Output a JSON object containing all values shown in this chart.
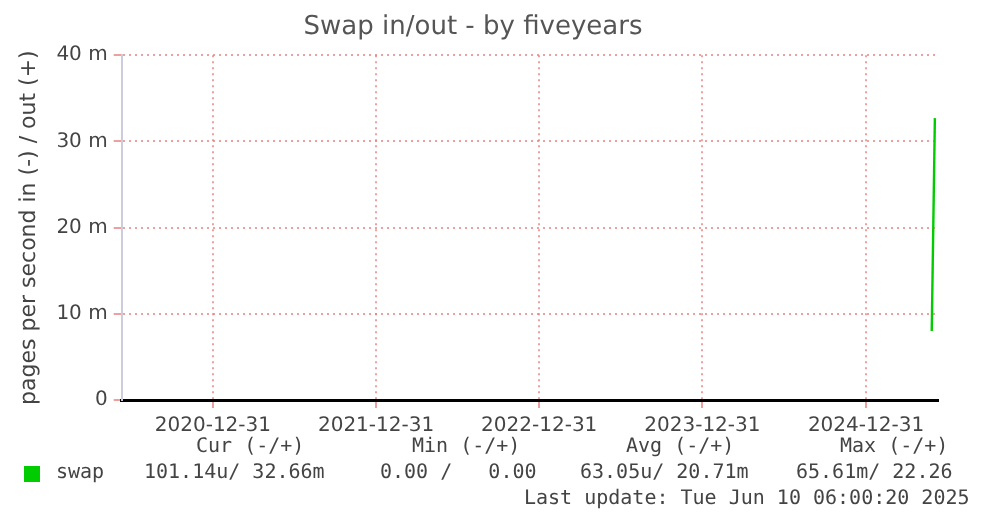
{
  "chart_data": {
    "type": "line",
    "title": "Swap in/out - by fiveyears",
    "ylabel": "pages per second in (-) / out (+)",
    "xlim": [
      "2020-06-10",
      "2025-06-10"
    ],
    "xticks": [
      "2020-12-31",
      "2021-12-31",
      "2022-12-31",
      "2023-12-31",
      "2024-12-31"
    ],
    "ylim": [
      0,
      40
    ],
    "yticks": [
      0,
      {
        "value": 10,
        "label": "10 m"
      },
      {
        "value": 20,
        "label": "20 m"
      },
      {
        "value": 30,
        "label": "30 m"
      },
      {
        "value": 40,
        "label": "40 m"
      }
    ],
    "series": [
      {
        "name": "swap",
        "color": "#00cc00",
        "x": [
          "2025-05-27",
          "2025-06-03"
        ],
        "values": [
          8,
          32.7
        ]
      }
    ],
    "grid": true,
    "legend": "bottom left",
    "marker": "none",
    "line_style": "solid",
    "annotations": [
      "Cur (-/+)",
      "Min (-/+)",
      "Avg (-/+)",
      "Max (-/+)",
      "101.14u/ 32.66m",
      "0.00 /   0.00",
      "63.05u/ 20.71m",
      "65.61m/ 22.26",
      "Last update: Tue Jun 10 06:00:20 2025"
    ]
  }
}
